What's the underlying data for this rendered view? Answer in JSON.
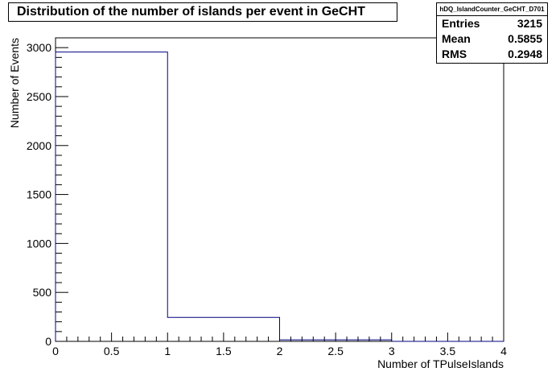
{
  "title": "Distribution of the number of islands per event in GeCHT",
  "stats": {
    "name": "hDQ_IslandCounter_GeCHT_D701",
    "rows": [
      {
        "label": "Entries",
        "value": "3215"
      },
      {
        "label": "Mean",
        "value": "0.5855"
      },
      {
        "label": "RMS",
        "value": "0.2948"
      }
    ]
  },
  "chart_data": {
    "type": "histogram",
    "title": "Distribution of the number of islands per event in GeCHT",
    "xlabel": "Number of TPulseIslands",
    "ylabel": "Number of Events",
    "xlim": [
      0,
      4
    ],
    "ylim": [
      0,
      3100
    ],
    "bins": [
      {
        "x0": 0,
        "x1": 1,
        "value": 2955
      },
      {
        "x0": 1,
        "x1": 2,
        "value": 245
      },
      {
        "x0": 2,
        "x1": 3,
        "value": 15
      },
      {
        "x0": 3,
        "x1": 4,
        "value": 0
      }
    ],
    "xticks": [
      "0",
      "0.5",
      "1",
      "1.5",
      "2",
      "2.5",
      "3",
      "3.5",
      "4"
    ],
    "yticks": [
      "0",
      "500",
      "1000",
      "1500",
      "2000",
      "2500",
      "3000"
    ],
    "line_color": "#000080"
  }
}
